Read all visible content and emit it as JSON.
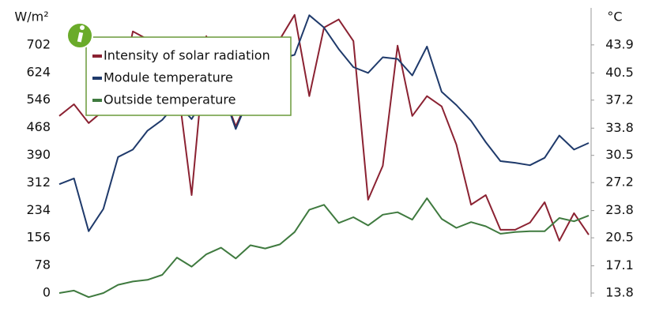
{
  "chart_data": {
    "type": "line",
    "y_label": "W/m²",
    "y2_label": "°C",
    "categories": [
      null,
      null,
      null,
      null,
      null,
      null,
      null,
      null,
      null,
      null,
      null,
      null,
      null,
      null,
      null,
      null,
      null,
      null,
      null,
      null,
      null,
      null,
      null,
      null,
      null,
      null,
      null,
      null,
      null,
      null,
      null,
      null,
      null,
      null,
      null,
      null,
      null
    ],
    "ylim": [
      0,
      800
    ],
    "yticks": [
      0,
      78,
      156,
      234,
      312,
      390,
      468,
      546,
      624,
      702
    ],
    "y2lim": [
      13.8,
      48.1
    ],
    "y2ticks": [
      13.8,
      17.1,
      20.5,
      23.8,
      27.2,
      30.5,
      33.8,
      37.2,
      40.5,
      43.9
    ],
    "legend": "upper left",
    "series": [
      {
        "name": "Intensity of solar radiation",
        "color": "#8b2232",
        "axis": "y",
        "values": [
          501,
          534,
          481,
          516,
          539,
          740,
          718,
          718,
          606,
          277,
          727,
          584,
          472,
          561,
          628,
          718,
          787,
          557,
          751,
          774,
          713,
          264,
          360,
          700,
          501,
          557,
          528,
          420,
          250,
          277,
          179,
          179,
          199,
          257,
          148,
          226,
          165
        ]
      },
      {
        "name": "Module temperature",
        "color": "#1f3a6b",
        "axis": "y2",
        "values": [
          27.0,
          27.7,
          21.3,
          24.0,
          30.3,
          31.2,
          33.5,
          34.8,
          36.9,
          34.9,
          37.9,
          38.8,
          33.7,
          37.9,
          40.7,
          42.2,
          42.7,
          47.5,
          46.0,
          43.4,
          41.2,
          40.5,
          42.4,
          42.2,
          40.2,
          43.7,
          38.2,
          36.6,
          34.7,
          32.1,
          29.8,
          29.6,
          29.3,
          30.2,
          32.9,
          31.2,
          32.0
        ]
      },
      {
        "name": "Outside temperature",
        "color": "#3f7a3f",
        "axis": "y2",
        "values": [
          13.8,
          14.1,
          13.3,
          13.8,
          14.8,
          15.2,
          15.4,
          16.0,
          18.1,
          17.0,
          18.5,
          19.3,
          18.0,
          19.6,
          19.2,
          19.7,
          21.2,
          23.9,
          24.5,
          22.3,
          23.0,
          22.0,
          23.3,
          23.6,
          22.7,
          25.3,
          22.8,
          21.7,
          22.4,
          21.9,
          21.0,
          21.2,
          21.3,
          21.3,
          22.9,
          22.5,
          23.2
        ]
      }
    ]
  }
}
